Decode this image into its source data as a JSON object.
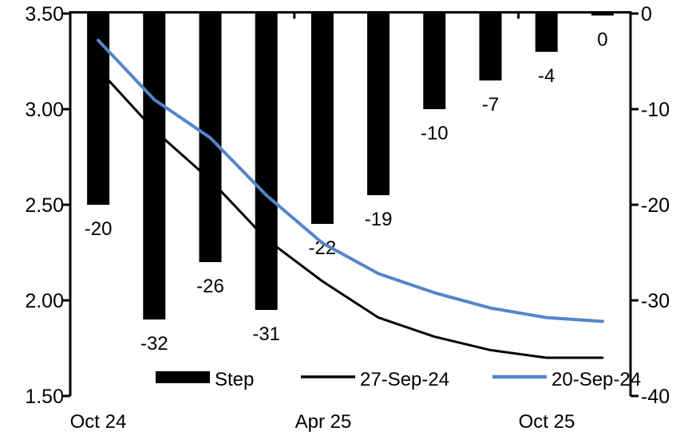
{
  "chart_data": {
    "type": "combo-bar-line",
    "categories_count": 10,
    "x_tick_labels": [
      {
        "index": 0,
        "label": "Oct 24"
      },
      {
        "index": 4,
        "label": "Apr 25"
      },
      {
        "index": 8,
        "label": "Oct 25"
      }
    ],
    "left_axis": {
      "min": 1.5,
      "max": 3.5,
      "ticks": [
        "3.50",
        "3.00",
        "2.50",
        "2.00",
        "1.50"
      ]
    },
    "right_axis": {
      "min": -40,
      "max": 0,
      "ticks": [
        "0",
        "-10",
        "-20",
        "-30",
        "-40"
      ]
    },
    "grid": false,
    "legend_position": "bottom-inside",
    "series": [
      {
        "name": "Step",
        "type": "bar",
        "axis": "right",
        "color": "#000000",
        "values": [
          -20,
          -32,
          -26,
          -31,
          -22,
          -19,
          -10,
          -7,
          -4,
          0
        ],
        "data_labels": [
          "-20",
          "-32",
          "-26",
          "-31",
          "-22",
          "-19",
          "-10",
          "-7",
          "-4",
          "0"
        ]
      },
      {
        "name": "27-Sep-24",
        "type": "line",
        "axis": "left",
        "color": "#000000",
        "values": [
          3.21,
          2.89,
          2.63,
          2.32,
          2.1,
          1.91,
          1.81,
          1.74,
          1.7,
          1.7
        ]
      },
      {
        "name": "20-Sep-24",
        "type": "line",
        "axis": "left",
        "color": "#5585c9",
        "values": [
          3.36,
          3.05,
          2.85,
          2.55,
          2.3,
          2.14,
          2.04,
          1.96,
          1.91,
          1.89
        ]
      }
    ],
    "legend": [
      {
        "label": "Step",
        "swatch": "bar",
        "color": "#000000"
      },
      {
        "label": "27-Sep-24",
        "swatch": "line",
        "color": "#000000"
      },
      {
        "label": "20-Sep-24",
        "swatch": "line",
        "color": "#5585c9"
      }
    ]
  }
}
